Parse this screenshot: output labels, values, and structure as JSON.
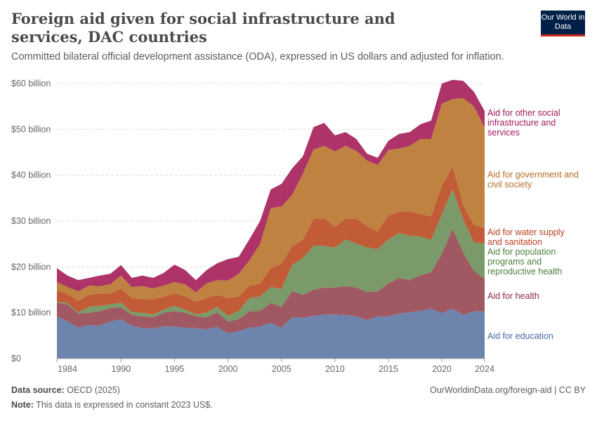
{
  "header": {
    "title": "Foreign aid given for social infrastructure and services, DAC countries",
    "subtitle": "Committed bilateral official development assistance (ODA), expressed in US dollars and adjusted for inflation.",
    "logo": "Our World in Data"
  },
  "footer": {
    "source_label": "Data source:",
    "source": "OECD (2025)",
    "url": "OurWorldinData.org/foreign-aid | CC BY",
    "note_label": "Note:",
    "note": "This data is expressed in constant 2023 US$."
  },
  "chart_data": {
    "type": "area",
    "stacked": true,
    "ylim": [
      0,
      60
    ],
    "grid": true,
    "legend": "right (inline labels)",
    "yticks": [
      {
        "v": 0,
        "label": "$0"
      },
      {
        "v": 10,
        "label": "$10 billion"
      },
      {
        "v": 20,
        "label": "$20 billion"
      },
      {
        "v": 30,
        "label": "$30 billion"
      },
      {
        "v": 40,
        "label": "$40 billion"
      },
      {
        "v": 50,
        "label": "$50 billion"
      },
      {
        "v": 60,
        "label": "$60 billion"
      }
    ],
    "xticks": [
      "1984",
      "1990",
      "1995",
      "2000",
      "2005",
      "2010",
      "2015",
      "2020",
      "2024"
    ],
    "x": [
      1984,
      1985,
      1986,
      1987,
      1988,
      1989,
      1990,
      1991,
      1992,
      1993,
      1994,
      1995,
      1996,
      1997,
      1998,
      1999,
      2000,
      2001,
      2002,
      2003,
      2004,
      2005,
      2006,
      2007,
      2008,
      2009,
      2010,
      2011,
      2012,
      2013,
      2014,
      2015,
      2016,
      2017,
      2018,
      2019,
      2020,
      2021,
      2022,
      2023,
      2024
    ],
    "series": [
      {
        "name": "Aid for education",
        "color": "#6d84ad",
        "label_color": "#4468a4",
        "values": [
          9.2,
          8.1,
          6.8,
          7.3,
          7.2,
          8.1,
          8.6,
          7.2,
          6.6,
          6.6,
          7.0,
          7.0,
          6.7,
          6.6,
          6.4,
          6.9,
          5.5,
          6.0,
          6.7,
          7.0,
          7.8,
          6.7,
          9.0,
          8.9,
          9.3,
          9.6,
          9.6,
          9.5,
          9.2,
          8.4,
          9.2,
          9.2,
          9.8,
          10.1,
          10.4,
          10.9,
          9.9,
          10.9,
          9.5,
          10.3,
          10.3
        ]
      },
      {
        "name": "Aid for health",
        "color": "#a05862",
        "label_color": "#8c2b3e",
        "values": [
          3.0,
          3.7,
          3.0,
          2.7,
          3.1,
          2.9,
          2.6,
          2.3,
          2.6,
          2.4,
          3.0,
          3.3,
          3.3,
          2.6,
          2.6,
          3.2,
          2.6,
          2.6,
          3.6,
          3.4,
          4.3,
          4.6,
          5.7,
          5.0,
          5.7,
          5.9,
          5.9,
          6.3,
          6.3,
          6.1,
          5.5,
          7.2,
          7.8,
          7.0,
          7.8,
          7.9,
          12.9,
          17.4,
          13.6,
          8.8,
          7.1
        ]
      },
      {
        "name": "Aid for population programs and reproductive health",
        "color": "#7a9a69",
        "label_color": "#4c7f3a",
        "values": [
          0.2,
          0.3,
          0.3,
          1.3,
          1.2,
          0.8,
          1.0,
          0.6,
          0.8,
          0.6,
          0.7,
          1.2,
          0.7,
          0.4,
          1.0,
          1.2,
          1.2,
          1.8,
          2.9,
          3.1,
          3.5,
          3.9,
          5.7,
          8.0,
          9.6,
          9.1,
          8.7,
          10.2,
          9.6,
          9.7,
          9.2,
          9.6,
          9.8,
          9.7,
          8.4,
          7.1,
          8.7,
          8.6,
          7.2,
          6.2,
          7.7
        ]
      },
      {
        "name": "Aid for water supply and sanitation",
        "color": "#c15c37",
        "label_color": "#b93f20",
        "values": [
          2.4,
          2.0,
          2.5,
          2.6,
          2.7,
          2.4,
          3.0,
          3.1,
          3.0,
          3.3,
          2.8,
          2.7,
          2.9,
          2.8,
          3.2,
          2.6,
          3.9,
          3.1,
          2.6,
          2.9,
          4.1,
          5.5,
          4.1,
          4.0,
          5.9,
          6.0,
          4.6,
          4.5,
          5.4,
          4.7,
          3.8,
          5.2,
          4.6,
          5.3,
          4.9,
          5.1,
          6.2,
          5.0,
          3.2,
          3.8,
          3.4
        ]
      },
      {
        "name": "Aid for government and civil society",
        "color": "#c08240",
        "label_color": "#b86d27",
        "values": [
          1.9,
          1.5,
          2.1,
          2.0,
          1.6,
          2.0,
          2.9,
          2.4,
          2.8,
          2.4,
          2.4,
          2.5,
          2.6,
          2.0,
          3.2,
          3.2,
          3.8,
          5.0,
          5.6,
          8.6,
          13.1,
          12.5,
          11.2,
          14.4,
          15.1,
          15.8,
          16.4,
          15.9,
          14.8,
          14.3,
          14.5,
          14.3,
          13.8,
          14.3,
          16.4,
          16.9,
          17.9,
          14.7,
          23.3,
          25.9,
          21.9
        ]
      },
      {
        "name": "Aid for other social infrastructure and services",
        "color": "#ad3369",
        "label_color": "#a2185b",
        "values": [
          3.0,
          2.5,
          2.4,
          1.7,
          2.3,
          2.3,
          2.3,
          2.0,
          2.3,
          2.3,
          2.8,
          3.8,
          3.1,
          2.7,
          2.9,
          3.7,
          4.7,
          3.7,
          4.6,
          5.0,
          4.1,
          4.9,
          5.8,
          3.8,
          4.9,
          5.0,
          3.5,
          3.0,
          2.6,
          1.5,
          1.6,
          2.0,
          3.2,
          3.0,
          3.2,
          4.0,
          4.4,
          4.2,
          3.8,
          3.2,
          3.6
        ]
      }
    ]
  }
}
